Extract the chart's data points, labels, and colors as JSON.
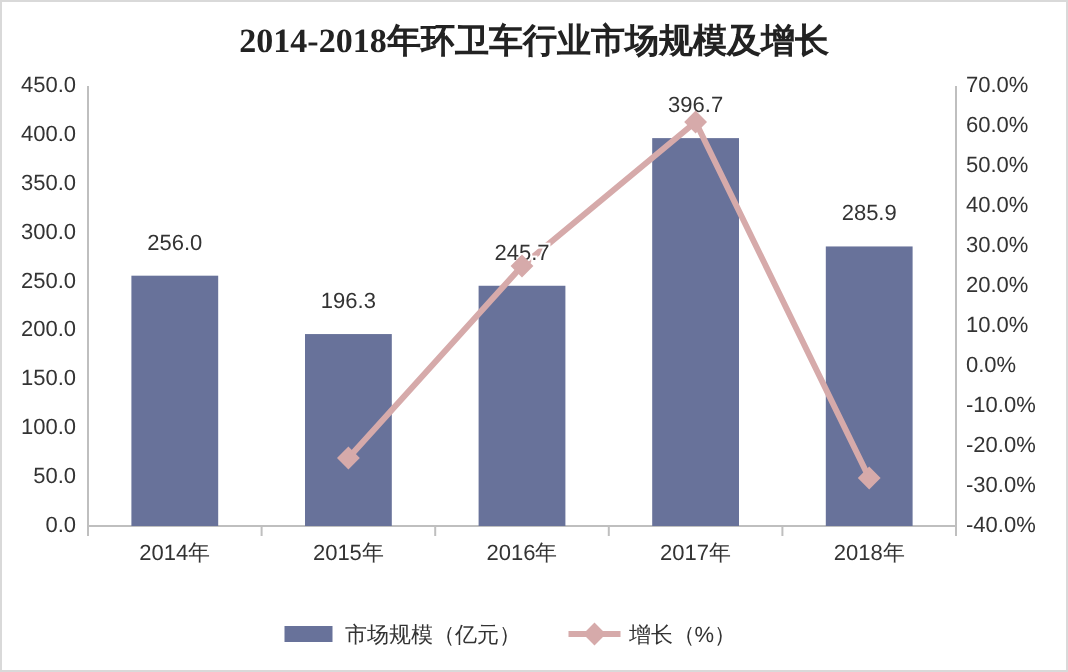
{
  "chart_data": {
    "type": "bar",
    "title": "2014-2018年环卫车行业市场规模及增长",
    "categories": [
      "2014年",
      "2015年",
      "2016年",
      "2017年",
      "2018年"
    ],
    "series": [
      {
        "type": "bar",
        "name": "市场规模（亿元）",
        "color": "#68729a",
        "values": [
          256.0,
          196.3,
          245.7,
          396.7,
          285.9
        ],
        "value_labels": [
          "256.0",
          "196.3",
          "245.7",
          "396.7",
          "285.9"
        ]
      },
      {
        "type": "line",
        "name": "增长（%）",
        "color": "#d6aaaa",
        "axis": "y2",
        "marker": "diamond",
        "values": [
          null,
          -23,
          25,
          61,
          -28
        ]
      }
    ],
    "ylim": [
      0,
      450
    ],
    "yticks": [
      {
        "value": 0,
        "label": "0.0"
      },
      {
        "value": 50,
        "label": "50.0"
      },
      {
        "value": 100,
        "label": "100.0"
      },
      {
        "value": 150,
        "label": "150.0"
      },
      {
        "value": 200,
        "label": "200.0"
      },
      {
        "value": 250,
        "label": "250.0"
      },
      {
        "value": 300,
        "label": "300.0"
      },
      {
        "value": 350,
        "label": "350.0"
      },
      {
        "value": 400,
        "label": "400.0"
      },
      {
        "value": 450,
        "label": "450.0"
      }
    ],
    "y2lim": [
      -40,
      70
    ],
    "y2ticks": [
      {
        "value": -40,
        "label": "-40.0%"
      },
      {
        "value": -30,
        "label": "-30.0%"
      },
      {
        "value": -20,
        "label": "-20.0%"
      },
      {
        "value": -10,
        "label": "-10.0%"
      },
      {
        "value": 0,
        "label": "0.0%"
      },
      {
        "value": 10,
        "label": "10.0%"
      },
      {
        "value": 20,
        "label": "20.0%"
      },
      {
        "value": 30,
        "label": "30.0%"
      },
      {
        "value": 40,
        "label": "40.0%"
      },
      {
        "value": 50,
        "label": "50.0%"
      },
      {
        "value": 60,
        "label": "60.0%"
      },
      {
        "value": 70,
        "label": "70.0%"
      }
    ],
    "legend": "bottom"
  }
}
